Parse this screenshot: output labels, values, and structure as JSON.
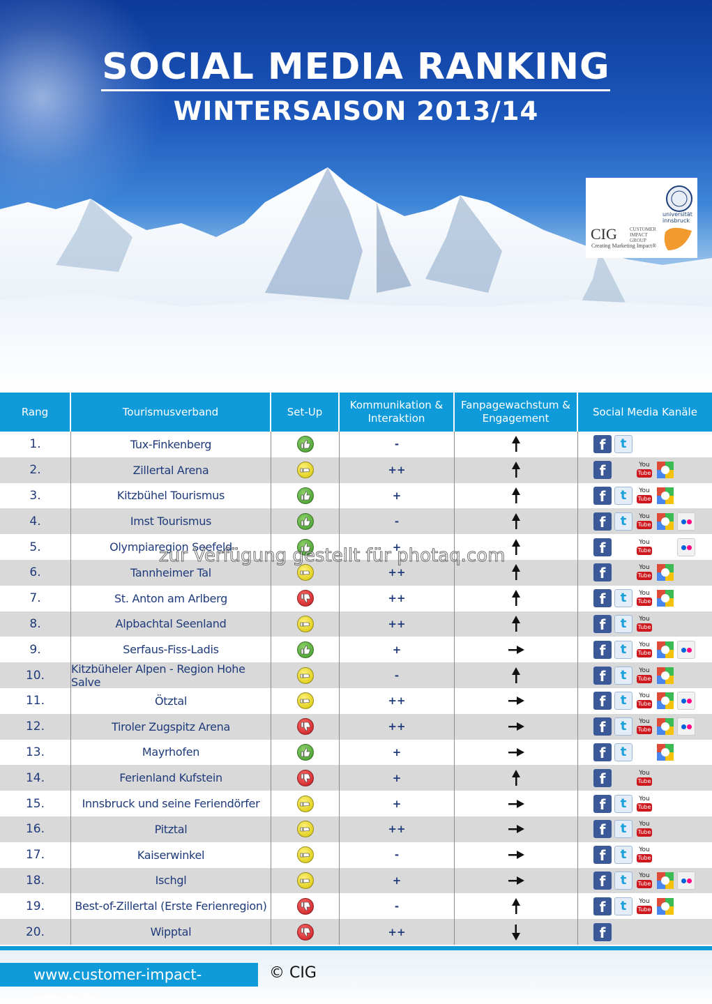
{
  "header": {
    "title": "SOCIAL MEDIA RANKING",
    "subtitle": "WINTERSAISON 2013/14"
  },
  "logo": {
    "cig": "CIG",
    "cig_name": "CUSTOMER IMPACT GROUP",
    "cig_tagline": "Creating Marketing Impact®",
    "university": "universität innsbruck"
  },
  "table": {
    "columns": [
      "Rang",
      "Tourismusverband",
      "Set-Up",
      "Kommunikation & Interaktion",
      "Fanpagewachstum & Engagement",
      "Social Media Kanäle"
    ],
    "rows": [
      {
        "rank": "1.",
        "name": "Tux-Finkenberg",
        "setup": "good",
        "komm": "-",
        "trend": "up",
        "channels": [
          "fb",
          "tw"
        ]
      },
      {
        "rank": "2.",
        "name": "Zillertal Arena",
        "setup": "mid",
        "komm": "++",
        "trend": "up",
        "channels": [
          "fb",
          "",
          "yt",
          "gp"
        ]
      },
      {
        "rank": "3.",
        "name": "Kitzbühel Tourismus",
        "setup": "good",
        "komm": "+",
        "trend": "up",
        "channels": [
          "fb",
          "tw",
          "yt",
          "gp"
        ]
      },
      {
        "rank": "4.",
        "name": "Imst Tourismus",
        "setup": "good",
        "komm": "-",
        "trend": "up",
        "channels": [
          "fb",
          "tw",
          "yt",
          "gp",
          "fl"
        ]
      },
      {
        "rank": "5.",
        "name": "Olympiaregion Seefeld",
        "setup": "good",
        "komm": "+",
        "trend": "up",
        "channels": [
          "fb",
          "",
          "yt",
          "",
          "fl"
        ]
      },
      {
        "rank": "6.",
        "name": "Tannheimer Tal",
        "setup": "mid",
        "komm": "++",
        "trend": "up",
        "channels": [
          "fb",
          "",
          "yt",
          "gp"
        ]
      },
      {
        "rank": "7.",
        "name": "St. Anton am Arlberg",
        "setup": "bad",
        "komm": "++",
        "trend": "up",
        "channels": [
          "fb",
          "tw",
          "yt",
          "gp"
        ]
      },
      {
        "rank": "8.",
        "name": "Alpbachtal Seenland",
        "setup": "mid",
        "komm": "++",
        "trend": "up",
        "channels": [
          "fb",
          "tw",
          "yt"
        ]
      },
      {
        "rank": "9.",
        "name": "Serfaus-Fiss-Ladis",
        "setup": "good",
        "komm": "+",
        "trend": "right",
        "channels": [
          "fb",
          "tw",
          "yt",
          "gp",
          "fl"
        ]
      },
      {
        "rank": "10.",
        "name": "Kitzbüheler Alpen - Region Hohe Salve",
        "setup": "mid",
        "komm": "-",
        "trend": "up",
        "channels": [
          "fb",
          "tw",
          "yt",
          "gp"
        ]
      },
      {
        "rank": "11.",
        "name": "Ötztal",
        "setup": "mid",
        "komm": "++",
        "trend": "right",
        "channels": [
          "fb",
          "tw",
          "yt",
          "gp",
          "fl"
        ]
      },
      {
        "rank": "12.",
        "name": "Tiroler Zugspitz Arena",
        "setup": "bad",
        "komm": "++",
        "trend": "right",
        "channels": [
          "fb",
          "tw",
          "yt",
          "gp",
          "fl"
        ]
      },
      {
        "rank": "13.",
        "name": "Mayrhofen",
        "setup": "good",
        "komm": "+",
        "trend": "right",
        "channels": [
          "fb",
          "tw",
          "",
          "gp"
        ]
      },
      {
        "rank": "14.",
        "name": "Ferienland Kufstein",
        "setup": "bad",
        "komm": "+",
        "trend": "up",
        "channels": [
          "fb",
          "",
          "yt"
        ]
      },
      {
        "rank": "15.",
        "name": "Innsbruck und seine Feriendörfer",
        "setup": "mid",
        "komm": "+",
        "trend": "right",
        "channels": [
          "fb",
          "tw",
          "yt"
        ]
      },
      {
        "rank": "16.",
        "name": "Pitztal",
        "setup": "mid",
        "komm": "++",
        "trend": "right",
        "channels": [
          "fb",
          "tw",
          "yt"
        ]
      },
      {
        "rank": "17.",
        "name": "Kaiserwinkel",
        "setup": "mid",
        "komm": "-",
        "trend": "right",
        "channels": [
          "fb",
          "tw",
          "yt"
        ]
      },
      {
        "rank": "18.",
        "name": "Ischgl",
        "setup": "mid",
        "komm": "+",
        "trend": "right",
        "channels": [
          "fb",
          "tw",
          "yt",
          "gp",
          "fl"
        ]
      },
      {
        "rank": "19.",
        "name": "Best-of-Zillertal (Erste Ferienregion)",
        "setup": "bad",
        "komm": "-",
        "trend": "up",
        "channels": [
          "fb",
          "tw",
          "yt",
          "gp"
        ]
      },
      {
        "rank": "20.",
        "name": "Wipptal",
        "setup": "bad",
        "komm": "++",
        "trend": "down",
        "channels": [
          "fb"
        ]
      }
    ]
  },
  "icons": {
    "fb": "f",
    "tw": "t",
    "yt_top": "You",
    "yt_bottom": "Tube"
  },
  "colors": {
    "accent": "#0f9ad9",
    "good": "#3c9a28",
    "mid": "#d6c400",
    "bad": "#c2161b"
  },
  "footer": {
    "url": "www.customer-impact-group.de",
    "copyright": "© CIG"
  },
  "watermark": "zur Verfügung gestellt für photaq.com"
}
